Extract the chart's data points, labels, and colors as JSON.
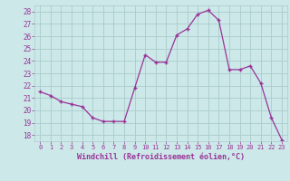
{
  "x": [
    0,
    1,
    2,
    3,
    4,
    5,
    6,
    7,
    8,
    9,
    10,
    11,
    12,
    13,
    14,
    15,
    16,
    17,
    18,
    19,
    20,
    21,
    22,
    23
  ],
  "y": [
    21.5,
    21.2,
    20.7,
    20.5,
    20.3,
    19.4,
    19.1,
    19.1,
    19.1,
    21.8,
    24.5,
    23.9,
    23.9,
    26.1,
    26.6,
    27.8,
    28.1,
    27.3,
    23.3,
    23.3,
    23.6,
    22.2,
    19.4,
    17.6
  ],
  "line_color": "#993399",
  "marker_color": "#993399",
  "bg_color": "#cce8e8",
  "grid_color": "#aacccc",
  "xlabel": "Windchill (Refroidissement éolien,°C)",
  "xlabel_color": "#993399",
  "ylim": [
    17.5,
    28.5
  ],
  "xlim": [
    -0.5,
    23.5
  ],
  "yticks": [
    18,
    19,
    20,
    21,
    22,
    23,
    24,
    25,
    26,
    27,
    28
  ],
  "xticks": [
    0,
    1,
    2,
    3,
    4,
    5,
    6,
    7,
    8,
    9,
    10,
    11,
    12,
    13,
    14,
    15,
    16,
    17,
    18,
    19,
    20,
    21,
    22,
    23
  ],
  "tick_label_color": "#993399"
}
